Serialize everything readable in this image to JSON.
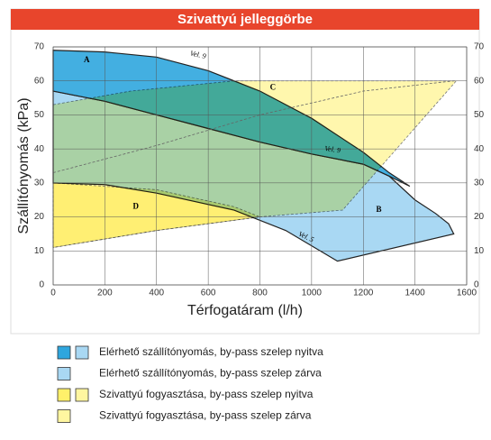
{
  "chart_data": {
    "type": "area",
    "title": "Szivattyú jelleggörbe",
    "xlabel": "Térfogatáram (l/h)",
    "ylabel": "Szállítónyomás (kPa)",
    "xlim": [
      0,
      1600
    ],
    "xticks": [
      0,
      200,
      400,
      600,
      800,
      1000,
      1200,
      1400,
      1600
    ],
    "ylim": [
      0,
      70
    ],
    "yticks": [
      0,
      10,
      20,
      30,
      40,
      50,
      60,
      70
    ],
    "y2lim": [
      0,
      70
    ],
    "y2ticks": [
      0,
      10,
      20,
      30,
      40,
      50,
      60,
      70
    ],
    "grid": true,
    "series": [
      {
        "name": "B",
        "color": "#a9d8f3",
        "x": [
          0,
          200,
          400,
          600,
          800,
          1000,
          1200,
          1300,
          1400,
          1480,
          1530,
          1550,
          1100,
          900,
          700,
          400,
          200,
          0
        ],
        "values": [
          57,
          54,
          50,
          46,
          42,
          38.5,
          35.5,
          32,
          25,
          21,
          18,
          15,
          7,
          16,
          22,
          27,
          29.5,
          30
        ]
      },
      {
        "name": "A",
        "color": "#2fa6de",
        "x": [
          0,
          200,
          400,
          600,
          800,
          1000,
          1200,
          1300,
          1380,
          1300,
          1200,
          1000,
          800,
          600,
          400,
          200,
          0
        ],
        "values": [
          69,
          68.5,
          67,
          63,
          57,
          49,
          39,
          33,
          29,
          32,
          35.5,
          38.5,
          42,
          46,
          50,
          54,
          57
        ]
      },
      {
        "name": "C",
        "color": "#fff06a",
        "x": [
          0,
          300,
          700,
          1560,
          1120,
          800,
          400,
          0
        ],
        "values": [
          53,
          57,
          60,
          60,
          22,
          20,
          16,
          11
        ]
      },
      {
        "name": "D",
        "color": "#fff6a0",
        "x": [
          0,
          400,
          700,
          800,
          400,
          0
        ],
        "values": [
          30,
          28,
          23,
          20,
          16,
          11
        ]
      }
    ],
    "lines": [
      {
        "x": [
          0,
          400,
          800,
          1200,
          1550
        ],
        "values": [
          33,
          41,
          50,
          57,
          60
        ]
      }
    ],
    "annotations": [
      "Vel. 9",
      "Vel. 9",
      "Vel. 5"
    ],
    "legend": [
      {
        "label": "Elérhető szállítónyomás, by-pass szelep nyitva",
        "colors": [
          "#2fa6de",
          "#a9d8f3"
        ]
      },
      {
        "label": "Elérhető szállítónyomás, by-pass szelep zárva",
        "colors": [
          "#a9d8f3"
        ]
      },
      {
        "label": "Szivattyú fogyasztása, by-pass szelep nyitva",
        "colors": [
          "#fff06a",
          "#fff6a0"
        ]
      },
      {
        "label": "Szivattyú fogyasztása, by-pass szelep zárva",
        "colors": [
          "#fff6a0"
        ]
      }
    ]
  }
}
